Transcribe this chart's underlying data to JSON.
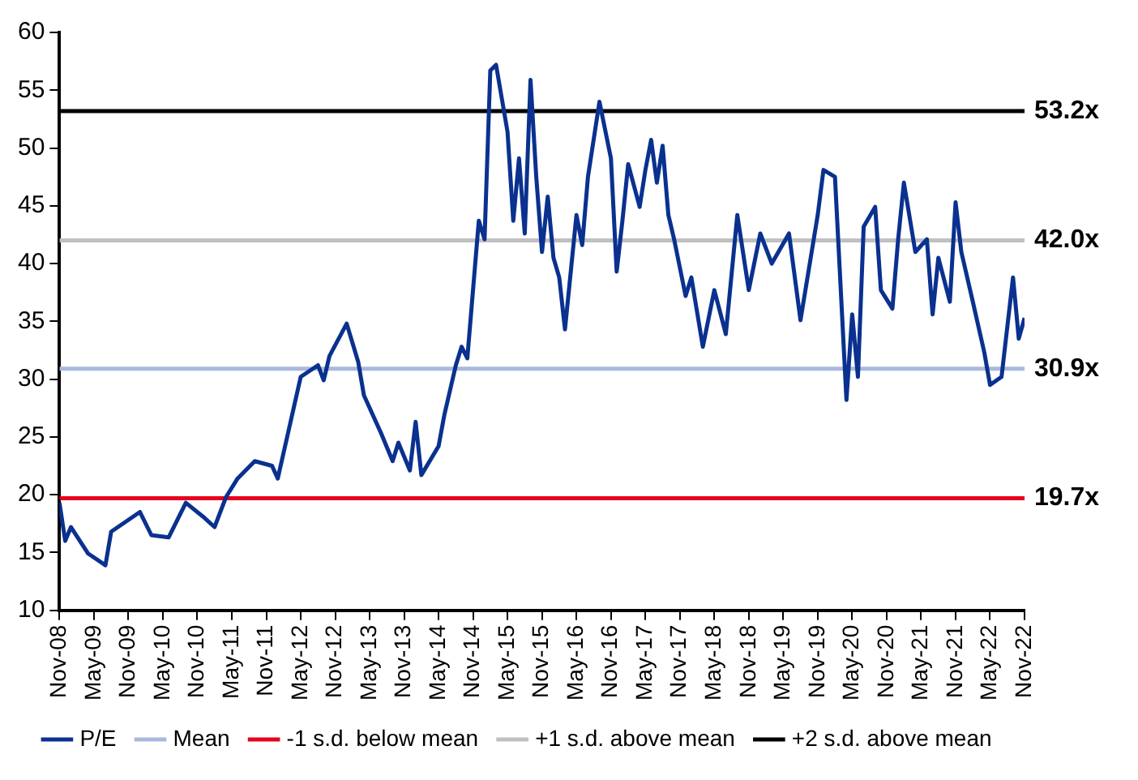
{
  "chart_data": {
    "type": "line",
    "xlim": [
      "2008-11",
      "2022-11"
    ],
    "xticks": [
      {
        "value": "2008-11",
        "label": "Nov-08"
      },
      {
        "value": "2009-05",
        "label": "May-09"
      },
      {
        "value": "2009-11",
        "label": "Nov-09"
      },
      {
        "value": "2010-05",
        "label": "May-10"
      },
      {
        "value": "2010-11",
        "label": "Nov-10"
      },
      {
        "value": "2011-05",
        "label": "May-11"
      },
      {
        "value": "2011-11",
        "label": "Nov-11"
      },
      {
        "value": "2012-05",
        "label": "May-12"
      },
      {
        "value": "2012-11",
        "label": "Nov-12"
      },
      {
        "value": "2013-05",
        "label": "May-13"
      },
      {
        "value": "2013-11",
        "label": "Nov-13"
      },
      {
        "value": "2014-05",
        "label": "May-14"
      },
      {
        "value": "2014-11",
        "label": "Nov-14"
      },
      {
        "value": "2015-05",
        "label": "May-15"
      },
      {
        "value": "2015-11",
        "label": "Nov-15"
      },
      {
        "value": "2016-05",
        "label": "May-16"
      },
      {
        "value": "2016-11",
        "label": "Nov-16"
      },
      {
        "value": "2017-05",
        "label": "May-17"
      },
      {
        "value": "2017-11",
        "label": "Nov-17"
      },
      {
        "value": "2018-05",
        "label": "May-18"
      },
      {
        "value": "2018-11",
        "label": "Nov-18"
      },
      {
        "value": "2019-05",
        "label": "May-19"
      },
      {
        "value": "2019-11",
        "label": "Nov-19"
      },
      {
        "value": "2020-05",
        "label": "May-20"
      },
      {
        "value": "2020-11",
        "label": "Nov-20"
      },
      {
        "value": "2021-05",
        "label": "May-21"
      },
      {
        "value": "2021-11",
        "label": "Nov-21"
      },
      {
        "value": "2022-05",
        "label": "May-22"
      },
      {
        "value": "2022-11",
        "label": "Nov-22"
      }
    ],
    "ylim": [
      10,
      60
    ],
    "yticks": [
      10,
      15,
      20,
      25,
      30,
      35,
      40,
      45,
      50,
      55,
      60
    ],
    "grid": false,
    "legend": "bottom",
    "marker": "none",
    "line_style": "solid",
    "series": [
      {
        "name": "P/E",
        "color": "#0a318f",
        "x": [
          "2008-11",
          "2008-12",
          "2009-01",
          "2009-04",
          "2009-07",
          "2009-08",
          "2010-01",
          "2010-03",
          "2010-06",
          "2010-09",
          "2010-12",
          "2011-02",
          "2011-04",
          "2011-06",
          "2011-09",
          "2011-12",
          "2012-01",
          "2012-03",
          "2012-05",
          "2012-08",
          "2012-09",
          "2012-10",
          "2013-01",
          "2013-03",
          "2013-04",
          "2013-07",
          "2013-09",
          "2013-10",
          "2013-12",
          "2014-01",
          "2014-02",
          "2014-05",
          "2014-06",
          "2014-08",
          "2014-09",
          "2014-10",
          "2014-12",
          "2015-01",
          "2015-02",
          "2015-03",
          "2015-05",
          "2015-06",
          "2015-07",
          "2015-08",
          "2015-09",
          "2015-10",
          "2015-11",
          "2015-12",
          "2016-01",
          "2016-02",
          "2016-03",
          "2016-05",
          "2016-06",
          "2016-07",
          "2016-09",
          "2016-11",
          "2016-12",
          "2017-01",
          "2017-02",
          "2017-04",
          "2017-05",
          "2017-06",
          "2017-07",
          "2017-08",
          "2017-09",
          "2017-10",
          "2017-12",
          "2018-01",
          "2018-03",
          "2018-05",
          "2018-07",
          "2018-09",
          "2018-11",
          "2019-01",
          "2019-03",
          "2019-06",
          "2019-08",
          "2019-11",
          "2019-12",
          "2020-02",
          "2020-04",
          "2020-05",
          "2020-06",
          "2020-07",
          "2020-09",
          "2020-10",
          "2020-12",
          "2021-01",
          "2021-02",
          "2021-04",
          "2021-06",
          "2021-07",
          "2021-08",
          "2021-10",
          "2021-11",
          "2021-12",
          "2022-02",
          "2022-04",
          "2022-05",
          "2022-07",
          "2022-09",
          "2022-10",
          "2022-11"
        ],
        "values": [
          19.3,
          16.0,
          17.2,
          14.9,
          13.9,
          16.8,
          18.5,
          16.5,
          16.3,
          19.3,
          18.1,
          17.2,
          19.8,
          21.4,
          22.9,
          22.5,
          21.4,
          25.8,
          30.2,
          31.2,
          29.9,
          32.0,
          34.8,
          31.5,
          28.6,
          25.3,
          22.9,
          24.5,
          22.1,
          26.3,
          21.7,
          24.2,
          26.9,
          31.2,
          32.8,
          31.8,
          43.7,
          42.1,
          56.7,
          57.2,
          51.4,
          43.7,
          49.1,
          42.6,
          55.9,
          47.5,
          41.0,
          45.8,
          40.5,
          38.8,
          34.3,
          44.2,
          41.6,
          47.5,
          54.0,
          49.1,
          39.3,
          43.7,
          48.6,
          44.9,
          48.1,
          50.7,
          47.0,
          50.2,
          44.2,
          42.1,
          37.2,
          38.8,
          32.8,
          37.7,
          33.9,
          44.2,
          37.7,
          42.6,
          40.0,
          42.6,
          35.1,
          44.2,
          48.1,
          47.5,
          28.2,
          35.6,
          30.2,
          43.2,
          44.9,
          37.7,
          36.1,
          42.1,
          47.0,
          41.0,
          42.1,
          35.6,
          40.5,
          36.7,
          45.3,
          41.0,
          36.7,
          32.3,
          29.5,
          30.2,
          38.8,
          33.5,
          35.3
        ]
      },
      {
        "name": "Mean",
        "color": "#a9b8dc",
        "x": [
          "2008-11",
          "2022-11"
        ],
        "values": [
          30.9,
          30.9
        ],
        "value_labels": [
          null,
          "30.9x"
        ]
      },
      {
        "name": "-1 s.d. below mean",
        "color": "#e8001c",
        "x": [
          "2008-11",
          "2022-11"
        ],
        "values": [
          19.7,
          19.7
        ],
        "value_labels": [
          null,
          "19.7x"
        ]
      },
      {
        "name": "+1 s.d. above mean",
        "color": "#c0c0c0",
        "x": [
          "2008-11",
          "2022-11"
        ],
        "values": [
          42.0,
          42.0
        ],
        "value_labels": [
          null,
          "42.0x"
        ]
      },
      {
        "name": "+2 s.d. above mean",
        "color": "#000000",
        "x": [
          "2008-11",
          "2022-11"
        ],
        "values": [
          53.2,
          53.2
        ],
        "value_labels": [
          null,
          "53.2x"
        ]
      }
    ]
  }
}
